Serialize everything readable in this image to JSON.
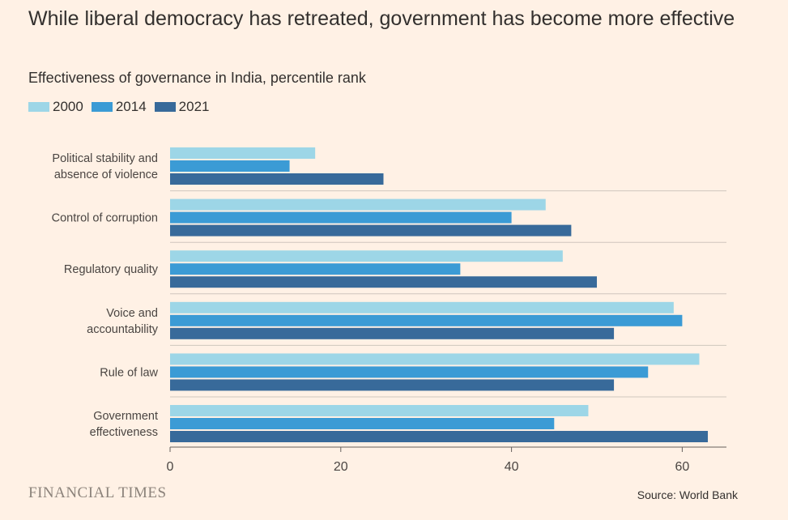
{
  "header": {
    "title": "While liberal democracy has retreated, government has become more effective",
    "subtitle": "Effectiveness of governance in India, percentile rank"
  },
  "footer": {
    "brand": "FINANCIAL TIMES",
    "source": "Source: World Bank"
  },
  "chart_data": {
    "type": "bar",
    "orientation": "horizontal",
    "categories": [
      [
        "Political stability and",
        "absence of violence"
      ],
      [
        "Control of corruption"
      ],
      [
        "Regulatory quality"
      ],
      [
        "Voice and",
        "accountability"
      ],
      [
        "Rule of law"
      ],
      [
        "Government",
        "effectiveness"
      ]
    ],
    "series": [
      {
        "name": "2000",
        "color": "#9dd6e7",
        "values": [
          17,
          44,
          46,
          59,
          62,
          49
        ]
      },
      {
        "name": "2014",
        "color": "#3b9bd5",
        "values": [
          14,
          40,
          34,
          60,
          56,
          45
        ]
      },
      {
        "name": "2021",
        "color": "#386a9a",
        "values": [
          25,
          47,
          50,
          52,
          52,
          63
        ]
      }
    ],
    "xlim": [
      0,
      65
    ],
    "xticks": [
      0,
      20,
      40,
      60
    ],
    "legend_position": "top-left",
    "grid": false
  }
}
